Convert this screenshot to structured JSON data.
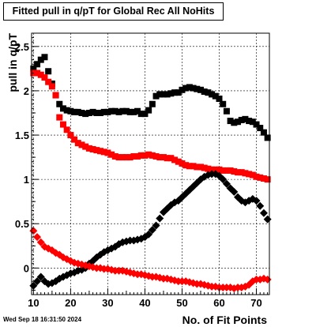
{
  "chart_data": {
    "type": "scatter",
    "title": "Fitted pull in q/pT for Global Rec All NoHits",
    "xlabel": "No. of Fit Points",
    "ylabel": "pull in q/pT",
    "xlim": [
      9.5,
      73.5
    ],
    "ylim": [
      -0.3,
      2.65
    ],
    "grid": true,
    "x_ticks": [
      10,
      20,
      30,
      40,
      50,
      60,
      70
    ],
    "y_ticks": [
      0,
      0.5,
      1,
      1.5,
      2,
      2.5
    ],
    "x": [
      10,
      11,
      12,
      13,
      14,
      15,
      16,
      17,
      18,
      19,
      20,
      21,
      22,
      23,
      24,
      25,
      26,
      27,
      28,
      29,
      30,
      31,
      32,
      33,
      34,
      35,
      36,
      37,
      38,
      39,
      40,
      41,
      42,
      43,
      44,
      45,
      46,
      47,
      48,
      49,
      50,
      51,
      52,
      53,
      54,
      55,
      56,
      57,
      58,
      59,
      60,
      61,
      62,
      63,
      64,
      65,
      66,
      67,
      68,
      69,
      70,
      71,
      72,
      73
    ],
    "series": [
      {
        "color": "#000000",
        "marker": "square",
        "values": [
          2.25,
          2.3,
          2.35,
          2.38,
          2.22,
          2.08,
          1.95,
          1.85,
          1.8,
          1.78,
          1.77,
          1.76,
          1.76,
          1.75,
          1.74,
          1.75,
          1.76,
          1.75,
          1.75,
          1.76,
          1.76,
          1.77,
          1.77,
          1.76,
          1.77,
          1.77,
          1.76,
          1.76,
          1.77,
          1.74,
          1.74,
          1.78,
          1.85,
          1.94,
          1.96,
          1.96,
          1.96,
          1.97,
          1.98,
          1.98,
          2.01,
          2.03,
          2.04,
          2.03,
          2.02,
          2.01,
          1.99,
          1.98,
          1.96,
          1.94,
          1.91,
          1.85,
          1.77,
          1.66,
          1.64,
          1.65,
          1.67,
          1.68,
          1.66,
          1.65,
          1.62,
          1.58,
          1.53,
          1.47
        ]
      },
      {
        "color": "#ff0000",
        "marker": "square",
        "values": [
          2.2,
          2.2,
          2.18,
          2.15,
          2.1,
          2.05,
          1.95,
          1.7,
          1.62,
          1.56,
          1.5,
          1.45,
          1.41,
          1.39,
          1.37,
          1.35,
          1.34,
          1.33,
          1.32,
          1.31,
          1.3,
          1.28,
          1.26,
          1.25,
          1.25,
          1.25,
          1.25,
          1.26,
          1.26,
          1.27,
          1.27,
          1.28,
          1.27,
          1.26,
          1.25,
          1.25,
          1.24,
          1.24,
          1.22,
          1.2,
          1.18,
          1.16,
          1.15,
          1.15,
          1.14,
          1.14,
          1.13,
          1.12,
          1.11,
          1.11,
          1.11,
          1.1,
          1.1,
          1.1,
          1.09,
          1.08,
          1.08,
          1.07,
          1.06,
          1.05,
          1.03,
          1.02,
          1.01,
          1.0
        ]
      },
      {
        "color": "#000000",
        "marker": "diamond",
        "values": [
          -0.2,
          -0.15,
          -0.1,
          -0.15,
          -0.18,
          -0.17,
          -0.15,
          -0.12,
          -0.1,
          -0.08,
          -0.06,
          -0.05,
          -0.03,
          -0.02,
          0.0,
          0.05,
          0.08,
          0.12,
          0.15,
          0.18,
          0.2,
          0.22,
          0.24,
          0.27,
          0.29,
          0.3,
          0.31,
          0.31,
          0.32,
          0.33,
          0.35,
          0.38,
          0.43,
          0.48,
          0.56,
          0.63,
          0.67,
          0.71,
          0.74,
          0.76,
          0.8,
          0.84,
          0.88,
          0.92,
          0.96,
          1.0,
          1.03,
          1.05,
          1.06,
          1.06,
          1.04,
          1.0,
          0.95,
          0.9,
          0.86,
          0.8,
          0.76,
          0.74,
          0.76,
          0.78,
          0.76,
          0.7,
          0.62,
          0.55
        ]
      },
      {
        "color": "#ff0000",
        "marker": "diamond",
        "values": [
          0.42,
          0.35,
          0.29,
          0.24,
          0.22,
          0.2,
          0.17,
          0.15,
          0.12,
          0.1,
          0.08,
          0.06,
          0.05,
          0.04,
          0.03,
          0.02,
          0.01,
          0.0,
          0.0,
          -0.01,
          -0.01,
          -0.02,
          -0.03,
          -0.03,
          -0.03,
          -0.04,
          -0.05,
          -0.06,
          -0.07,
          -0.07,
          -0.08,
          -0.09,
          -0.1,
          -0.1,
          -0.11,
          -0.12,
          -0.12,
          -0.13,
          -0.14,
          -0.15,
          -0.15,
          -0.15,
          -0.16,
          -0.17,
          -0.18,
          -0.18,
          -0.19,
          -0.2,
          -0.21,
          -0.21,
          -0.22,
          -0.22,
          -0.22,
          -0.22,
          -0.23,
          -0.22,
          -0.22,
          -0.21,
          -0.19,
          -0.15,
          -0.13,
          -0.13,
          -0.12,
          -0.13
        ]
      }
    ]
  },
  "timestamp": "Wed Sep 18 16:31:50 2024"
}
